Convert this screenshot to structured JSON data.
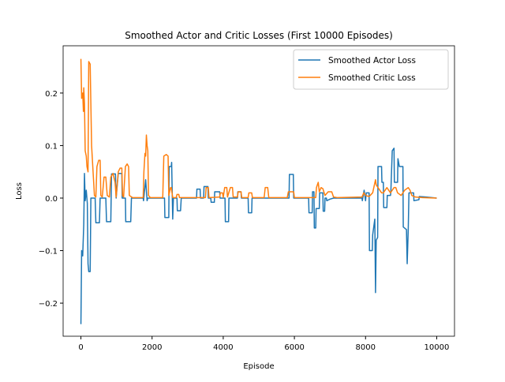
{
  "chart_data": {
    "type": "line",
    "title": "Smoothed Actor and Critic Losses (First 10000 Episodes)",
    "x_label": "Episode",
    "y_label": "Loss",
    "xlim": [
      -500,
      10500
    ],
    "ylim": [
      -0.263,
      0.29
    ],
    "xticks": [
      0,
      2000,
      4000,
      6000,
      8000,
      10000
    ],
    "yticks": [
      {
        "value": -0.2,
        "label": "−0.2"
      },
      {
        "value": -0.1,
        "label": "−0.1"
      },
      {
        "value": 0,
        "label": "0.0"
      },
      0.1,
      0.2
    ],
    "legend": "upper right",
    "grid": false,
    "series": [
      {
        "name": "Smoothed Actor Loss",
        "color": "#1f77b4",
        "x": [
          0,
          20,
          50,
          60,
          80,
          100,
          120,
          150,
          180,
          200,
          220,
          260,
          280,
          400,
          420,
          520,
          540,
          700,
          720,
          840,
          860,
          970,
          990,
          1050,
          1150,
          1160,
          1250,
          1260,
          1400,
          1420,
          1750,
          1760,
          1820,
          1860,
          1880,
          2350,
          2360,
          2470,
          2480,
          2540,
          2550,
          2580,
          2600,
          2700,
          2710,
          2800,
          2820,
          3250,
          3260,
          3350,
          3360,
          3450,
          3460,
          3570,
          3580,
          3650,
          3660,
          3750,
          3760,
          3900,
          3910,
          4050,
          4060,
          4150,
          4160,
          4400,
          4410,
          4500,
          4510,
          4700,
          4710,
          4800,
          4810,
          5850,
          5860,
          5970,
          5980,
          6400,
          6410,
          6500,
          6510,
          6550,
          6560,
          6600,
          6610,
          6700,
          6710,
          6800,
          6810,
          6850,
          6860,
          6900,
          6910,
          7000,
          7100,
          7900,
          7910,
          7960,
          8000,
          8020,
          8100,
          8110,
          8190,
          8200,
          8260,
          8280,
          8300,
          8340,
          8350,
          8450,
          8460,
          8500,
          8510,
          8600,
          8610,
          8700,
          8710,
          8750,
          8800,
          8810,
          8900,
          8910,
          8950,
          9050,
          9060,
          9150,
          9170,
          9200,
          9220,
          9350,
          9360,
          9500,
          9510,
          9700,
          10000
        ],
        "values": [
          -0.24,
          -0.1,
          -0.11,
          -0.09,
          -0.05,
          0.047,
          -0.005,
          0.015,
          -0.01,
          -0.125,
          -0.14,
          -0.14,
          0,
          0,
          -0.047,
          -0.047,
          0,
          0,
          -0.045,
          -0.045,
          0.046,
          0.046,
          0,
          0.047,
          0.047,
          0,
          0,
          -0.045,
          -0.045,
          0,
          0,
          -0.005,
          0.035,
          -0.005,
          0,
          0,
          -0.037,
          -0.037,
          0.06,
          0.06,
          0.068,
          -0.04,
          0,
          0,
          -0.024,
          -0.024,
          0,
          0,
          0.017,
          0.017,
          0,
          0,
          0.022,
          0.022,
          0,
          0,
          -0.008,
          -0.008,
          0.012,
          0.012,
          0,
          0,
          -0.045,
          -0.045,
          0,
          0,
          0.012,
          0.012,
          0,
          0,
          -0.028,
          -0.028,
          0,
          0,
          0.045,
          0.045,
          0,
          0,
          -0.028,
          -0.028,
          0.012,
          0.012,
          -0.057,
          -0.057,
          -0.02,
          -0.02,
          0.01,
          0.01,
          -0.025,
          -0.025,
          0,
          0,
          -0.005,
          -0.002,
          0,
          0,
          -0.005,
          0.015,
          -0.005,
          0.01,
          0.01,
          -0.1,
          -0.1,
          -0.07,
          -0.04,
          -0.18,
          -0.08,
          -0.075,
          0.06,
          0.06,
          0.03,
          0.03,
          -0.018,
          -0.018,
          0.005,
          0.005,
          0.01,
          0.09,
          0.095,
          0.03,
          0.03,
          0.075,
          0.06,
          0.06,
          -0.055,
          -0.06,
          -0.125,
          -0.06,
          0.01,
          0.01,
          -0.005,
          -0.003,
          0.003,
          0.002,
          0
        ]
      },
      {
        "name": "Smoothed Critic Loss",
        "color": "#ff7f0e",
        "x": [
          0,
          20,
          50,
          70,
          80,
          100,
          120,
          150,
          170,
          200,
          220,
          260,
          300,
          350,
          380,
          420,
          450,
          500,
          540,
          560,
          600,
          650,
          700,
          740,
          800,
          840,
          900,
          960,
          990,
          1050,
          1100,
          1150,
          1170,
          1200,
          1250,
          1300,
          1340,
          1360,
          1450,
          1750,
          1770,
          1800,
          1820,
          1840,
          1860,
          1880,
          1900,
          1950,
          2300,
          2330,
          2400,
          2450,
          2470,
          2520,
          2540,
          2580,
          2680,
          2700,
          2750,
          2770,
          3500,
          3520,
          3580,
          3600,
          3900,
          3920,
          3980,
          4000,
          4040,
          4100,
          4120,
          4200,
          4260,
          4280,
          4400,
          4420,
          4500,
          4520,
          4700,
          4720,
          4800,
          4820,
          5150,
          5180,
          5250,
          5280,
          5800,
          5830,
          5980,
          6000,
          6600,
          6620,
          6670,
          6700,
          6750,
          6800,
          6860,
          6950,
          7050,
          7100,
          7200,
          7900,
          7950,
          8000,
          8100,
          8200,
          8280,
          8300,
          8350,
          8450,
          8500,
          8600,
          8700,
          8800,
          8850,
          8900,
          9000,
          9050,
          9100,
          9200,
          9250,
          9300,
          9400,
          9600,
          10000
        ],
        "values": [
          0.265,
          0.19,
          0.2,
          0.165,
          0.21,
          0.18,
          0.09,
          0.08,
          0.06,
          0.05,
          0.26,
          0.255,
          0.1,
          0.04,
          0.005,
          0.002,
          0.06,
          0.072,
          0.072,
          0.005,
          0.002,
          0.04,
          0.04,
          0.005,
          0.002,
          0.04,
          0.047,
          0.03,
          0.002,
          0.05,
          0.057,
          0.057,
          0.005,
          0.002,
          0.06,
          0.065,
          0.06,
          0.005,
          0.001,
          0.001,
          0.05,
          0.085,
          0.08,
          0.12,
          0.1,
          0.09,
          0.005,
          0.001,
          0.001,
          0.08,
          0.083,
          0.08,
          0.005,
          0.02,
          0.02,
          0.001,
          0.001,
          0.007,
          0.007,
          0.001,
          0.001,
          0.02,
          0.02,
          0.001,
          0.002,
          0.01,
          0.01,
          0.001,
          0.02,
          0.02,
          0.002,
          0.02,
          0.02,
          0.002,
          0.002,
          0.012,
          0.012,
          0.001,
          0.001,
          0.01,
          0.01,
          0.001,
          0.001,
          0.02,
          0.02,
          0.001,
          0.001,
          0.012,
          0.012,
          0.001,
          0.001,
          0.02,
          0.03,
          0.012,
          0.02,
          0.018,
          0.005,
          0.012,
          0.012,
          0.002,
          0.001,
          0.002,
          0.01,
          0.005,
          0.003,
          0.01,
          0.035,
          0.025,
          0.02,
          0.01,
          0.01,
          0.02,
          0.01,
          0.02,
          0.02,
          0.01,
          0.005,
          0.01,
          0.015,
          0.02,
          0.015,
          0.005,
          0.002,
          0.001,
          0
        ]
      }
    ]
  }
}
